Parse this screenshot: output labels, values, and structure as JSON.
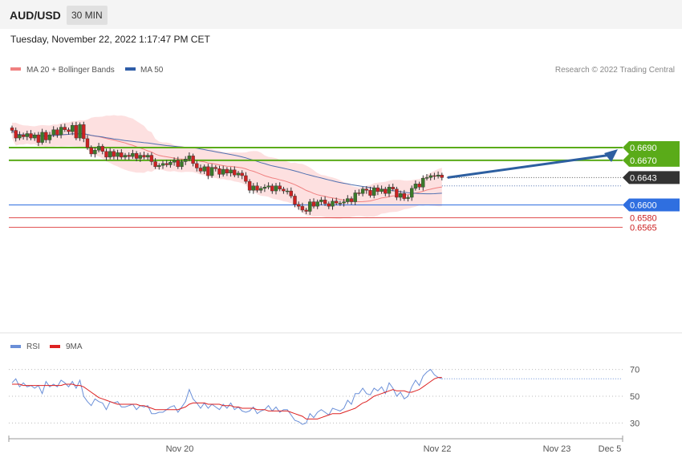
{
  "header": {
    "pair": "AUD/USD",
    "timeframe": "30 MIN",
    "datetime": "Tuesday, November 22, 2022 1:17:47 PM CET"
  },
  "legend": {
    "ma20_label": "MA 20 + Bollinger Bands",
    "ma50_label": "MA 50",
    "credit": "Research © 2022 Trading Central",
    "rsi_label": "RSI",
    "ma9_label": "9MA"
  },
  "colors": {
    "resistance": "#5aab19",
    "support": "#2f6fe0",
    "red_level": "#e05050",
    "current": "#333333",
    "bullish": "#3a7a2a",
    "bearish": "#cc2222",
    "bollinger_fill": "#fde0e0",
    "ma20": "#f08080",
    "ma50": "#5070b0",
    "rsi": "#6a8fd8",
    "ma9": "#dd2222",
    "arrow": "#2d5fa0"
  },
  "chart_data": [
    {
      "type": "candlestick",
      "title": "AUD/USD",
      "interval": "30 MIN",
      "x_ticks": [
        "Nov 20",
        "Nov 22",
        "Nov 23",
        "Dec 5"
      ],
      "ylim": [
        0.6555,
        0.674
      ],
      "levels": [
        {
          "value": 0.669,
          "label": "0.6690",
          "kind": "resistance"
        },
        {
          "value": 0.667,
          "label": "0.6670",
          "kind": "resistance"
        },
        {
          "value": 0.6643,
          "label": "0.6643",
          "kind": "current"
        },
        {
          "value": 0.66,
          "label": "0.6600",
          "kind": "support"
        },
        {
          "value": 0.658,
          "label": "0.6580",
          "kind": "minor"
        },
        {
          "value": 0.6565,
          "label": "0.6565",
          "kind": "minor"
        }
      ],
      "ma50_projection": 0.663,
      "closes": [
        0.6717,
        0.6705,
        0.671,
        0.6707,
        0.6712,
        0.6705,
        0.671,
        0.6698,
        0.6714,
        0.6702,
        0.671,
        0.6718,
        0.671,
        0.6722,
        0.6718,
        0.6715,
        0.6725,
        0.6705,
        0.6726,
        0.6704,
        0.669,
        0.668,
        0.6686,
        0.6692,
        0.6684,
        0.6675,
        0.6684,
        0.6676,
        0.6682,
        0.6675,
        0.6678,
        0.6676,
        0.6681,
        0.6673,
        0.6678,
        0.6675,
        0.6678,
        0.6668,
        0.666,
        0.6662,
        0.6665,
        0.6663,
        0.6667,
        0.667,
        0.666,
        0.6668,
        0.6672,
        0.6677,
        0.6665,
        0.6658,
        0.6653,
        0.666,
        0.6646,
        0.6659,
        0.6657,
        0.6648,
        0.6656,
        0.665,
        0.6655,
        0.6647,
        0.665,
        0.6646,
        0.6637,
        0.6623,
        0.663,
        0.6623,
        0.6626,
        0.6628,
        0.663,
        0.6622,
        0.663,
        0.6625,
        0.6622,
        0.6622,
        0.6614,
        0.6601,
        0.6598,
        0.6592,
        0.659,
        0.6605,
        0.6598,
        0.6605,
        0.6608,
        0.6602,
        0.6598,
        0.6606,
        0.6603,
        0.6603,
        0.6605,
        0.661,
        0.6605,
        0.6619,
        0.6618,
        0.6625,
        0.6623,
        0.6615,
        0.6627,
        0.6621,
        0.6625,
        0.6618,
        0.6628,
        0.6625,
        0.6612,
        0.6618,
        0.661,
        0.6612,
        0.6626,
        0.6633,
        0.6628,
        0.6642,
        0.6643,
        0.6646,
        0.6645,
        0.6647,
        0.6643
      ]
    },
    {
      "type": "line",
      "title": "RSI",
      "ylim": [
        20,
        75
      ],
      "yticks": [
        70,
        50,
        30
      ],
      "series": [
        {
          "name": "RSI",
          "values": [
            60,
            63,
            57,
            60,
            57,
            58,
            56,
            58,
            52,
            61,
            57,
            59,
            57,
            62,
            60,
            57,
            61,
            56,
            62,
            50,
            46,
            43,
            48,
            46,
            45,
            40,
            46,
            45,
            46,
            42,
            42,
            43,
            44,
            40,
            43,
            42,
            43,
            37,
            37,
            38,
            38,
            40,
            42,
            43,
            38,
            42,
            46,
            55,
            48,
            45,
            41,
            45,
            41,
            44,
            42,
            40,
            44,
            41,
            45,
            40,
            42,
            39,
            38,
            39,
            42,
            37,
            39,
            40,
            43,
            39,
            42,
            38,
            40,
            40,
            36,
            32,
            31,
            29,
            30,
            37,
            34,
            38,
            40,
            38,
            36,
            41,
            40,
            39,
            41,
            47,
            44,
            52,
            52,
            56,
            52,
            51,
            56,
            54,
            57,
            52,
            60,
            56,
            50,
            53,
            48,
            50,
            57,
            62,
            58,
            65,
            68,
            70,
            66,
            64,
            63
          ]
        },
        {
          "name": "9MA",
          "values": [
            59,
            59,
            59,
            58,
            58,
            58,
            58,
            58,
            58,
            58,
            58,
            58,
            58,
            58,
            59,
            59,
            59,
            58,
            58,
            57,
            55,
            53,
            51,
            49,
            48,
            47,
            46,
            45,
            44,
            44,
            44,
            44,
            44,
            44,
            43,
            43,
            42,
            41,
            40,
            40,
            40,
            40,
            40,
            40,
            40,
            41,
            42,
            44,
            45,
            45,
            45,
            45,
            44,
            44,
            44,
            44,
            43,
            43,
            43,
            42,
            42,
            41,
            41,
            41,
            41,
            40,
            40,
            40,
            39,
            39,
            39,
            39,
            39,
            39,
            38,
            37,
            36,
            35,
            33,
            33,
            33,
            33,
            34,
            35,
            36,
            37,
            37,
            37,
            38,
            39,
            40,
            41,
            43,
            45,
            46,
            48,
            50,
            51,
            52,
            53,
            54,
            55,
            54,
            54,
            54,
            53,
            53,
            54,
            55,
            57,
            59,
            61,
            63,
            64,
            64
          ]
        }
      ]
    }
  ]
}
